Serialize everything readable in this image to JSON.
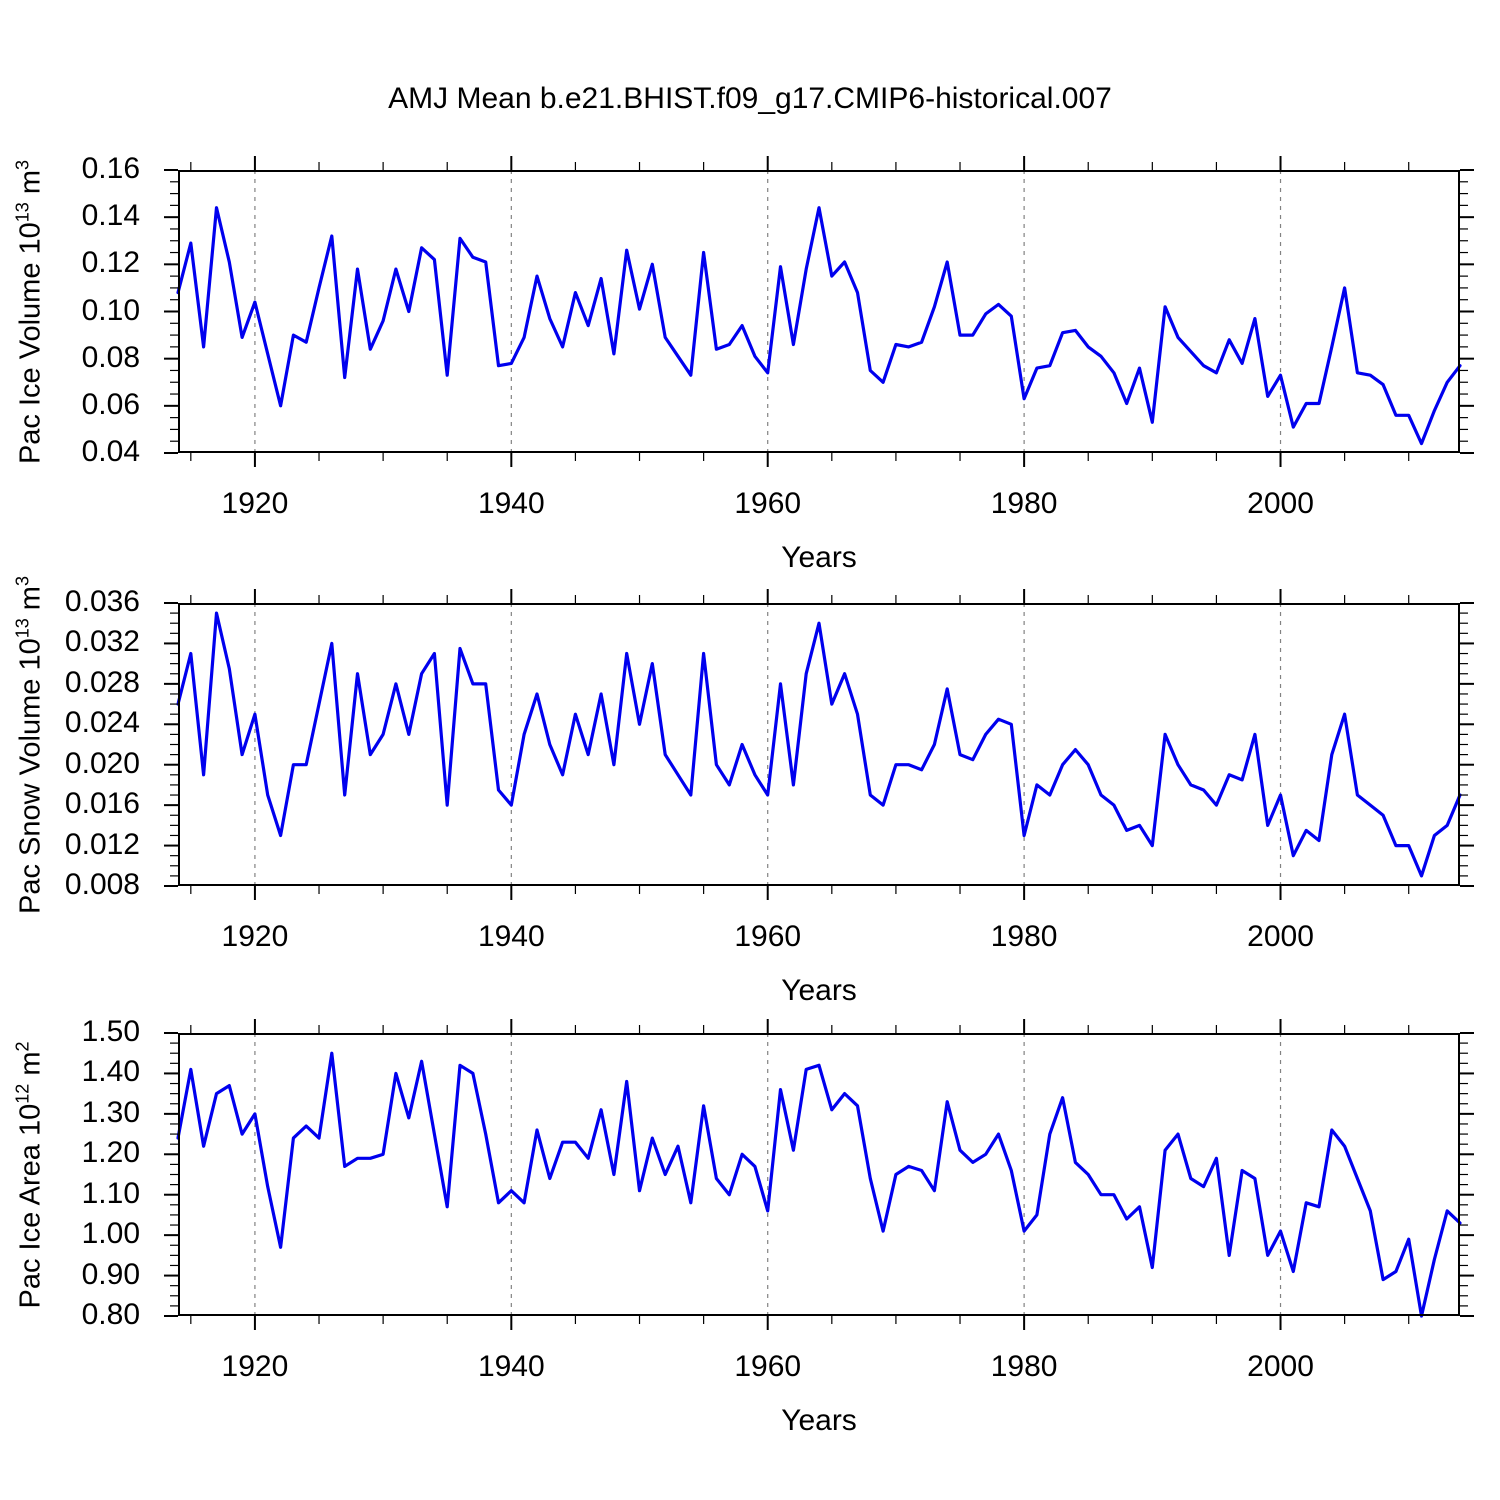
{
  "title": "AMJ Mean b.e21.BHIST.f09_g17.CMIP6-historical.007",
  "chart_data": {
    "type": "line",
    "title": "AMJ Mean b.e21.BHIST.f09_g17.CMIP6-historical.007",
    "x_label": "Years",
    "x_start": 1914,
    "x_end": 2014,
    "x_step": 1,
    "x_ticks": [
      1920,
      1940,
      1960,
      1980,
      2000
    ],
    "x_minor_step": 5,
    "line_color": "#0000EE",
    "grid_color": "#828282",
    "grid": "vertical dashed lines at major x ticks",
    "legend": "none",
    "panels": [
      {
        "id": "pac-ice-volume",
        "y_label": {
          "base": "Pac Ice Volume 10",
          "exp": "13",
          "unit": "m",
          "unit_exp": "3"
        },
        "ylim": [
          0.04,
          0.16
        ],
        "y_tick_step": 0.02,
        "y_minor_step": 0.005,
        "y_tick_labels": [
          "0.04",
          "0.06",
          "0.08",
          "0.10",
          "0.12",
          "0.14",
          "0.16"
        ],
        "values": [
          0.108,
          0.129,
          0.085,
          0.144,
          0.121,
          0.089,
          0.104,
          0.082,
          0.06,
          0.09,
          0.087,
          0.11,
          0.132,
          0.072,
          0.118,
          0.084,
          0.096,
          0.118,
          0.1,
          0.127,
          0.122,
          0.073,
          0.131,
          0.123,
          0.121,
          0.077,
          0.078,
          0.089,
          0.115,
          0.097,
          0.085,
          0.108,
          0.094,
          0.114,
          0.082,
          0.126,
          0.101,
          0.12,
          0.089,
          0.081,
          0.073,
          0.125,
          0.084,
          0.086,
          0.094,
          0.081,
          0.074,
          0.119,
          0.086,
          0.118,
          0.144,
          0.115,
          0.121,
          0.108,
          0.075,
          0.07,
          0.086,
          0.085,
          0.087,
          0.102,
          0.121,
          0.09,
          0.09,
          0.099,
          0.103,
          0.098,
          0.063,
          0.076,
          0.077,
          0.091,
          0.092,
          0.085,
          0.081,
          0.074,
          0.061,
          0.076,
          0.053,
          0.102,
          0.089,
          0.083,
          0.077,
          0.074,
          0.088,
          0.078,
          0.097,
          0.064,
          0.073,
          0.051,
          0.061,
          0.061,
          0.085,
          0.11,
          0.074,
          0.073,
          0.069,
          0.056,
          0.056,
          0.044,
          0.058,
          0.07,
          0.077
        ]
      },
      {
        "id": "pac-snow-volume",
        "y_label": {
          "base": "Pac Snow Volume 10",
          "exp": "13",
          "unit": "m",
          "unit_exp": "3"
        },
        "ylim": [
          0.008,
          0.036
        ],
        "y_tick_step": 0.004,
        "y_minor_step": 0.001,
        "y_tick_labels": [
          "0.008",
          "0.012",
          "0.016",
          "0.020",
          "0.024",
          "0.028",
          "0.032",
          "0.036"
        ],
        "values": [
          0.026,
          0.031,
          0.019,
          0.035,
          0.0295,
          0.021,
          0.025,
          0.017,
          0.013,
          0.02,
          0.02,
          0.026,
          0.032,
          0.017,
          0.029,
          0.021,
          0.023,
          0.028,
          0.023,
          0.029,
          0.031,
          0.016,
          0.0315,
          0.028,
          0.028,
          0.0175,
          0.016,
          0.023,
          0.027,
          0.022,
          0.019,
          0.025,
          0.021,
          0.027,
          0.02,
          0.031,
          0.024,
          0.03,
          0.021,
          0.019,
          0.017,
          0.031,
          0.02,
          0.018,
          0.022,
          0.019,
          0.017,
          0.028,
          0.018,
          0.029,
          0.034,
          0.026,
          0.029,
          0.025,
          0.017,
          0.016,
          0.02,
          0.02,
          0.0195,
          0.022,
          0.0275,
          0.021,
          0.0205,
          0.023,
          0.0245,
          0.024,
          0.013,
          0.018,
          0.017,
          0.02,
          0.0215,
          0.02,
          0.017,
          0.016,
          0.0135,
          0.014,
          0.012,
          0.023,
          0.02,
          0.018,
          0.0175,
          0.016,
          0.019,
          0.0185,
          0.023,
          0.014,
          0.017,
          0.011,
          0.0135,
          0.0125,
          0.021,
          0.025,
          0.017,
          0.016,
          0.015,
          0.012,
          0.012,
          0.009,
          0.013,
          0.014,
          0.017
        ]
      },
      {
        "id": "pac-ice-area",
        "y_label": {
          "base": "Pac Ice Area 10",
          "exp": "12",
          "unit": "m",
          "unit_exp": "2"
        },
        "ylim": [
          0.8,
          1.5
        ],
        "y_tick_step": 0.1,
        "y_minor_step": 0.025,
        "y_tick_labels": [
          "0.80",
          "0.90",
          "1.00",
          "1.10",
          "1.20",
          "1.30",
          "1.40",
          "1.50"
        ],
        "values": [
          1.24,
          1.41,
          1.22,
          1.35,
          1.37,
          1.25,
          1.3,
          1.12,
          0.97,
          1.24,
          1.27,
          1.24,
          1.45,
          1.17,
          1.19,
          1.19,
          1.2,
          1.4,
          1.29,
          1.43,
          1.25,
          1.07,
          1.42,
          1.4,
          1.25,
          1.08,
          1.11,
          1.08,
          1.26,
          1.14,
          1.23,
          1.23,
          1.19,
          1.31,
          1.15,
          1.38,
          1.11,
          1.24,
          1.15,
          1.22,
          1.08,
          1.32,
          1.14,
          1.1,
          1.2,
          1.17,
          1.06,
          1.36,
          1.21,
          1.41,
          1.42,
          1.31,
          1.35,
          1.32,
          1.14,
          1.01,
          1.15,
          1.17,
          1.16,
          1.11,
          1.33,
          1.21,
          1.18,
          1.2,
          1.25,
          1.16,
          1.01,
          1.05,
          1.25,
          1.34,
          1.18,
          1.15,
          1.1,
          1.1,
          1.04,
          1.07,
          0.92,
          1.21,
          1.25,
          1.14,
          1.12,
          1.19,
          0.95,
          1.16,
          1.14,
          0.95,
          1.01,
          0.91,
          1.08,
          1.07,
          1.26,
          1.22,
          1.14,
          1.06,
          0.89,
          0.91,
          0.99,
          0.8,
          0.94,
          1.06,
          1.03
        ]
      }
    ]
  }
}
